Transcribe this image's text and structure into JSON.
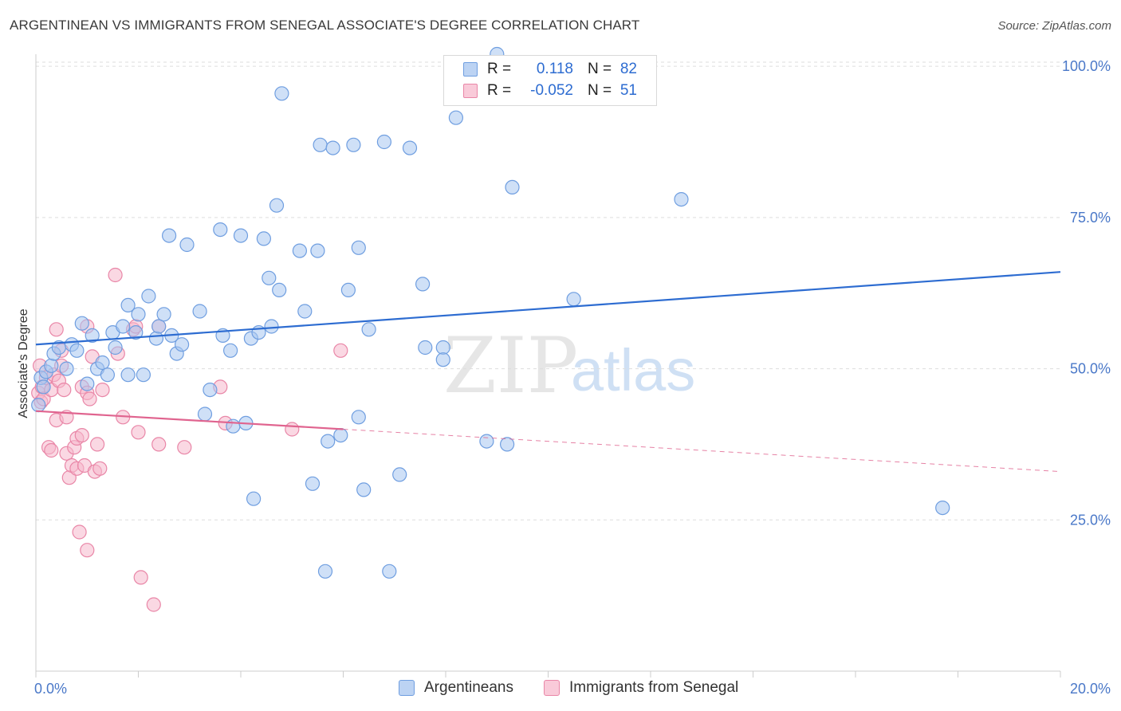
{
  "header": {
    "title": "ARGENTINEAN VS IMMIGRANTS FROM SENEGAL ASSOCIATE'S DEGREE CORRELATION CHART",
    "source": "Source: ZipAtlas.com"
  },
  "watermark": {
    "zip": "ZIP",
    "atlas": "atlas"
  },
  "colors": {
    "blue_fill": "#a8c6f0",
    "blue_stroke": "#6f9ee0",
    "blue_line": "#2d6cd1",
    "pink_fill": "#f6b8cc",
    "pink_stroke": "#e986a7",
    "pink_line": "#e0648f",
    "tick_text": "#4a78c8",
    "grid": "#dddddd"
  },
  "legend": {
    "rows": [
      {
        "r_label": "R =",
        "r_value": "0.118",
        "n_label": "N =",
        "n_value": "82"
      },
      {
        "r_label": "R =",
        "r_value": "-0.052",
        "n_label": "N =",
        "n_value": "51"
      }
    ]
  },
  "chart_data": {
    "type": "scatter",
    "title": "ARGENTINEAN VS IMMIGRANTS FROM SENEGAL ASSOCIATE'S DEGREE CORRELATION CHART",
    "xlabel": "",
    "ylabel": "Associate's Degree",
    "xlim": [
      0,
      20
    ],
    "ylim": [
      0,
      102
    ],
    "x_tick_labels": [
      "0.0%",
      "20.0%"
    ],
    "y_ticks": [
      25,
      50,
      75,
      100
    ],
    "y_tick_labels": [
      "25.0%",
      "50.0%",
      "75.0%",
      "100.0%"
    ],
    "grid": true,
    "legend_position": "top-center",
    "series": [
      {
        "name": "Argentineans",
        "color": "#a8c6f0",
        "trend": {
          "x": [
            0,
            20
          ],
          "y": [
            54.0,
            66.0
          ]
        },
        "points": [
          [
            0.05,
            44.0
          ],
          [
            0.1,
            48.5
          ],
          [
            0.15,
            47.0
          ],
          [
            0.2,
            49.5
          ],
          [
            0.3,
            50.5
          ],
          [
            0.35,
            52.5
          ],
          [
            0.45,
            53.5
          ],
          [
            0.6,
            50.0
          ],
          [
            0.7,
            54.0
          ],
          [
            0.8,
            53.0
          ],
          [
            0.9,
            57.5
          ],
          [
            1.0,
            47.5
          ],
          [
            1.1,
            55.5
          ],
          [
            1.2,
            50.0
          ],
          [
            1.3,
            51.0
          ],
          [
            1.4,
            49.0
          ],
          [
            1.5,
            56.0
          ],
          [
            1.55,
            53.5
          ],
          [
            1.7,
            57.0
          ],
          [
            1.8,
            49.0
          ],
          [
            1.8,
            60.5
          ],
          [
            1.95,
            56.0
          ],
          [
            2.0,
            59.0
          ],
          [
            2.1,
            49.0
          ],
          [
            2.2,
            62.0
          ],
          [
            2.35,
            55.0
          ],
          [
            2.4,
            57.0
          ],
          [
            2.5,
            59.0
          ],
          [
            2.6,
            72.0
          ],
          [
            2.65,
            55.5
          ],
          [
            2.75,
            52.5
          ],
          [
            2.85,
            54.0
          ],
          [
            2.95,
            70.5
          ],
          [
            3.2,
            59.5
          ],
          [
            3.3,
            42.5
          ],
          [
            3.4,
            46.5
          ],
          [
            3.6,
            73.0
          ],
          [
            3.65,
            55.5
          ],
          [
            3.8,
            53.0
          ],
          [
            3.85,
            40.5
          ],
          [
            4.0,
            72.0
          ],
          [
            4.1,
            41.0
          ],
          [
            4.2,
            55.0
          ],
          [
            4.25,
            28.5
          ],
          [
            4.35,
            56.0
          ],
          [
            4.45,
            71.5
          ],
          [
            4.55,
            65.0
          ],
          [
            4.6,
            57.0
          ],
          [
            4.7,
            77.0
          ],
          [
            4.75,
            63.0
          ],
          [
            4.8,
            95.5
          ],
          [
            5.15,
            69.5
          ],
          [
            5.25,
            59.5
          ],
          [
            5.4,
            31.0
          ],
          [
            5.5,
            69.5
          ],
          [
            5.55,
            87.0
          ],
          [
            5.65,
            16.5
          ],
          [
            5.7,
            38.0
          ],
          [
            5.8,
            86.5
          ],
          [
            5.95,
            39.0
          ],
          [
            6.1,
            63.0
          ],
          [
            6.2,
            87.0
          ],
          [
            6.3,
            42.0
          ],
          [
            6.3,
            70.0
          ],
          [
            6.4,
            30.0
          ],
          [
            6.5,
            56.5
          ],
          [
            6.8,
            87.5
          ],
          [
            6.9,
            16.5
          ],
          [
            7.1,
            32.5
          ],
          [
            7.3,
            86.5
          ],
          [
            7.55,
            64.0
          ],
          [
            7.6,
            53.5
          ],
          [
            7.95,
            53.5
          ],
          [
            7.95,
            51.5
          ],
          [
            8.2,
            91.5
          ],
          [
            8.8,
            38.0
          ],
          [
            9.0,
            102.0
          ],
          [
            9.2,
            37.5
          ],
          [
            9.3,
            80.0
          ],
          [
            10.5,
            61.5
          ],
          [
            12.6,
            78.0
          ],
          [
            17.7,
            27.0
          ]
        ]
      },
      {
        "name": "Immigrants from Senegal",
        "color": "#f6b8cc",
        "trend": {
          "x": [
            0,
            6.0,
            20
          ],
          "y": [
            43.0,
            40.0,
            33.0
          ],
          "solid_until_x": 6.0
        },
        "points": [
          [
            0.05,
            46.0
          ],
          [
            0.08,
            50.5
          ],
          [
            0.1,
            44.5
          ],
          [
            0.12,
            47.0
          ],
          [
            0.15,
            45.0
          ],
          [
            0.2,
            48.5
          ],
          [
            0.25,
            37.0
          ],
          [
            0.3,
            36.5
          ],
          [
            0.3,
            46.5
          ],
          [
            0.35,
            49.0
          ],
          [
            0.4,
            41.5
          ],
          [
            0.4,
            56.5
          ],
          [
            0.45,
            48.0
          ],
          [
            0.5,
            50.5
          ],
          [
            0.5,
            53.0
          ],
          [
            0.55,
            46.5
          ],
          [
            0.6,
            42.0
          ],
          [
            0.6,
            36.0
          ],
          [
            0.65,
            32.0
          ],
          [
            0.7,
            34.0
          ],
          [
            0.75,
            37.0
          ],
          [
            0.8,
            38.5
          ],
          [
            0.8,
            33.5
          ],
          [
            0.85,
            23.0
          ],
          [
            0.9,
            47.0
          ],
          [
            0.9,
            39.0
          ],
          [
            0.95,
            34.0
          ],
          [
            1.0,
            46.0
          ],
          [
            1.0,
            20.0
          ],
          [
            1.0,
            57.0
          ],
          [
            1.05,
            45.0
          ],
          [
            1.1,
            52.0
          ],
          [
            1.15,
            33.0
          ],
          [
            1.2,
            37.5
          ],
          [
            1.25,
            33.5
          ],
          [
            1.3,
            46.5
          ],
          [
            1.55,
            65.5
          ],
          [
            1.6,
            52.5
          ],
          [
            1.7,
            42.0
          ],
          [
            1.9,
            56.5
          ],
          [
            1.95,
            57.0
          ],
          [
            2.0,
            39.5
          ],
          [
            2.05,
            15.5
          ],
          [
            2.3,
            11.0
          ],
          [
            2.4,
            37.5
          ],
          [
            2.4,
            57.0
          ],
          [
            2.9,
            37.0
          ],
          [
            3.6,
            47.0
          ],
          [
            3.7,
            41.0
          ],
          [
            5.0,
            40.0
          ],
          [
            5.95,
            53.0
          ]
        ]
      }
    ]
  },
  "bottom_legend": {
    "items": [
      "Argentineans",
      "Immigrants from Senegal"
    ]
  }
}
